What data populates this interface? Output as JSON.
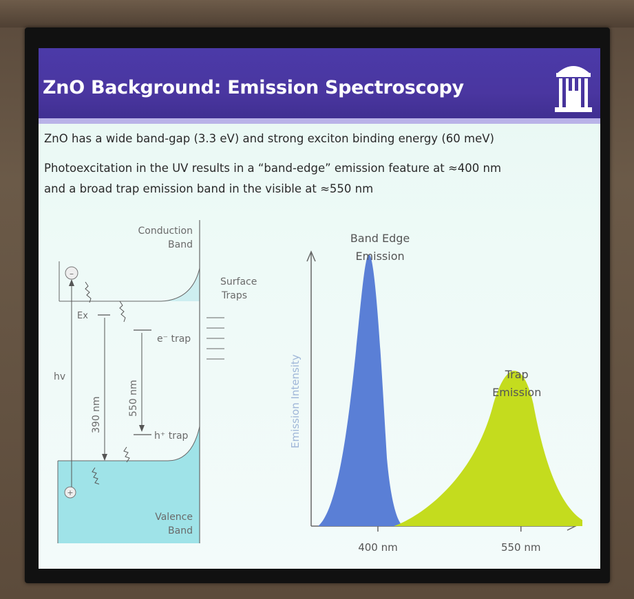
{
  "slide": {
    "title": "ZnO Background: Emission Spectroscopy",
    "bullets": [
      "ZnO has a wide band-gap (3.3 eV) and strong exciton binding energy (60 meV)",
      "Photoexcitation in the UV results in a “band-edge” emission feature at ≈400 nm",
      "and a broad trap emission band in the visible at ≈550 nm"
    ],
    "logo_icon": "old-well-icon"
  },
  "diagram": {
    "conduction_band": [
      "Conduction",
      "Band"
    ],
    "valence_band": [
      "Valence",
      "Band"
    ],
    "surface_traps": [
      "Surface",
      "Traps"
    ],
    "exciton": "Ex",
    "electron_trap": "e⁻ trap",
    "hole_trap": "h⁺ trap",
    "excitation": "hv",
    "wavelength_390": "390 nm",
    "wavelength_550": "550 nm",
    "electron_symbol": "–",
    "hole_symbol": "+"
  },
  "chart_data": {
    "type": "area",
    "ylabel": "Emission Intensity",
    "x_tick_labels": [
      "400 nm",
      "550 nm"
    ],
    "x_ticks": [
      400,
      550
    ],
    "xlim": [
      330,
      600
    ],
    "ylim": [
      0,
      1
    ],
    "series": [
      {
        "name": "Band Edge Emission",
        "label_lines": [
          "Band Edge",
          "Emission"
        ],
        "color": "#5a7fd6",
        "peak_x": 395,
        "peak_y": 1.0,
        "shape": "narrow peak"
      },
      {
        "name": "Trap Emission",
        "label_lines": [
          "Trap",
          "Emission"
        ],
        "color": "#c4dc1e",
        "peak_x": 550,
        "peak_y": 0.62,
        "shape": "broad band"
      }
    ]
  }
}
